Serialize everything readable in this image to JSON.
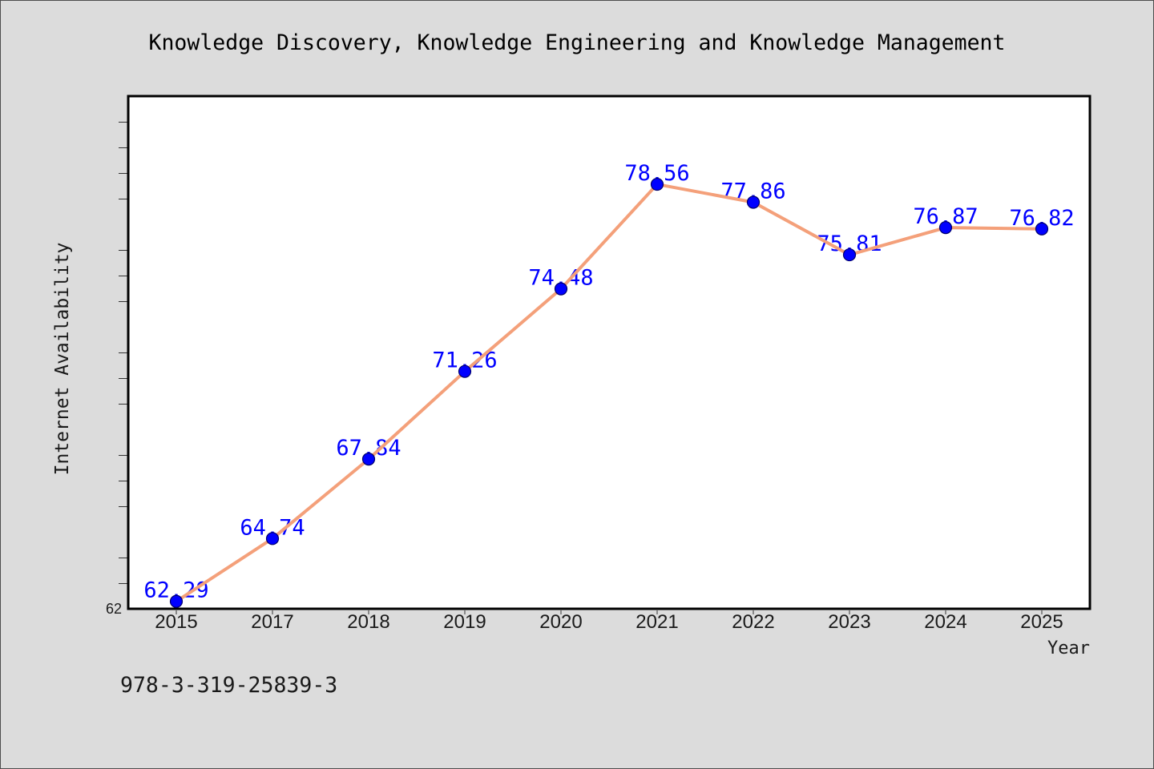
{
  "colors": {
    "page_background": "#dcdcdc",
    "plot_background": "#ffffff",
    "axis": "#000000",
    "line": "#f4a07a",
    "marker": "#0000ff",
    "data_label": "#0000ff"
  },
  "footer": {
    "text": "978-3-319-25839-3"
  },
  "chart_data": {
    "type": "line",
    "title": "Knowledge Discovery, Knowledge Engineering and Knowledge Management",
    "xlabel": "Year",
    "ylabel": "Internet Availability",
    "categories": [
      "2015",
      "2017",
      "2018",
      "2019",
      "2020",
      "2021",
      "2022",
      "2023",
      "2024",
      "2025"
    ],
    "series": [
      {
        "values": [
          62.29,
          64.74,
          67.84,
          71.26,
          74.48,
          78.56,
          77.86,
          75.81,
          76.87,
          76.82
        ]
      }
    ],
    "ylim": [
      62,
      82
    ],
    "yticks": [
      62
    ],
    "y_minor_ticks": [
      63,
      64,
      66,
      67,
      68,
      70,
      71,
      72,
      74,
      75,
      76,
      78,
      79,
      80,
      81
    ],
    "grid": false,
    "legend": false
  }
}
